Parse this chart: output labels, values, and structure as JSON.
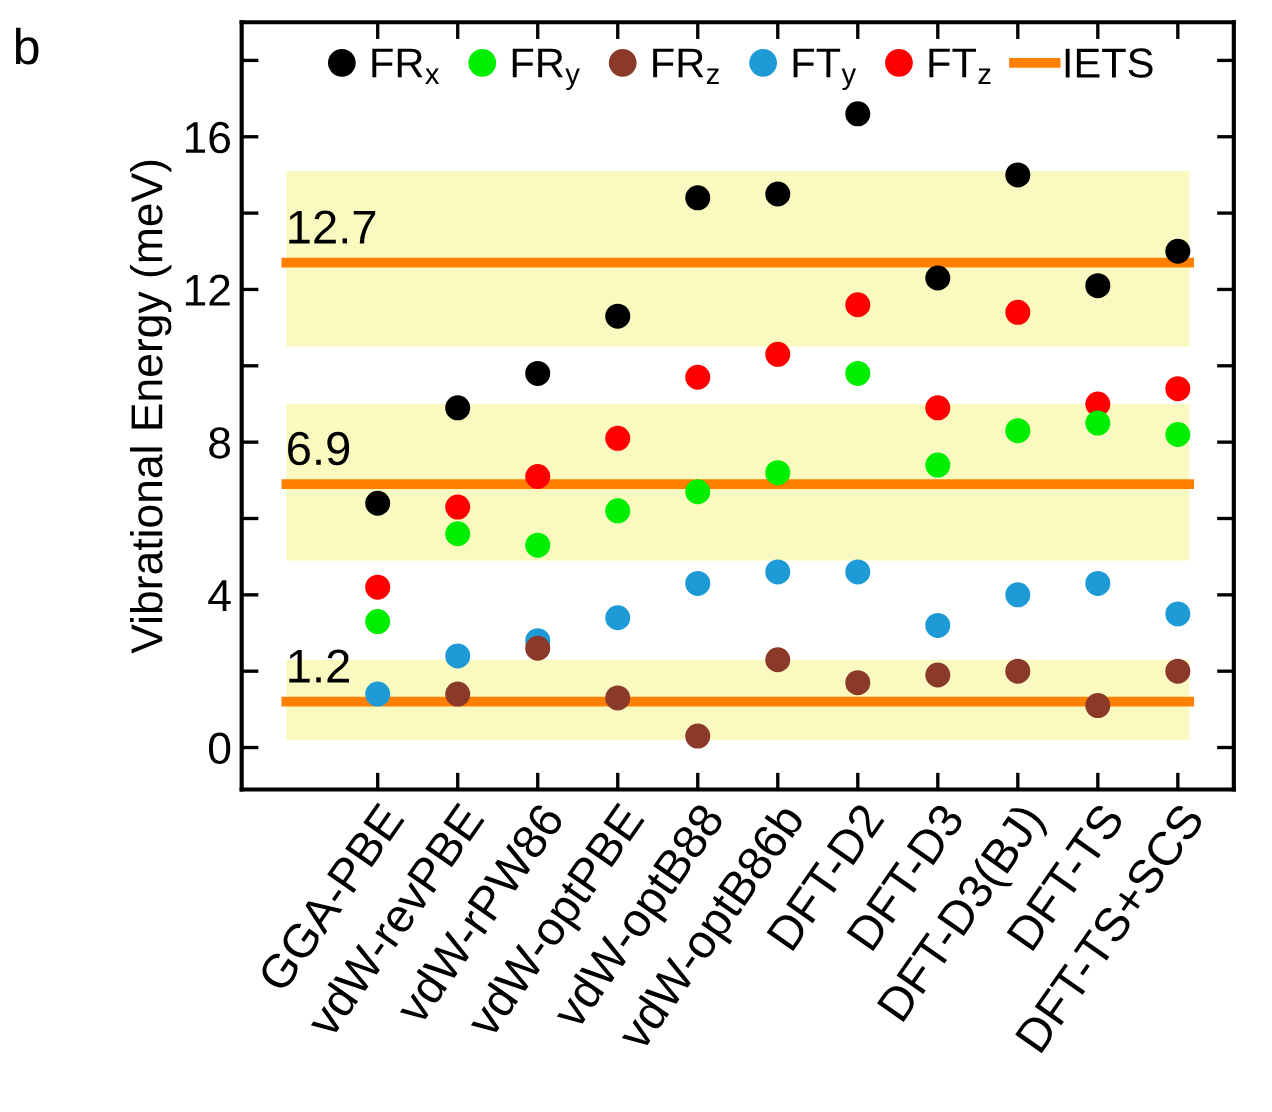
{
  "chart_data": {
    "type": "scatter",
    "ylabel": "Vibrational Energy (meV)",
    "categories": [
      "GGA-PBE",
      "vdW-revPBE",
      "vdW-rPW86",
      "vdW-optPBE",
      "vdW-optB88",
      "vdW-optB86b",
      "DFT-D2",
      "DFT-D3",
      "DFT-D3(BJ)",
      "DFT-TS",
      "DFT-TS+SCS"
    ],
    "series": [
      {
        "name": "FR$_{x}$",
        "color": "#000000",
        "values": [
          6.4,
          8.9,
          9.8,
          11.3,
          14.4,
          14.5,
          16.6,
          12.3,
          15.0,
          12.1,
          13.0
        ]
      },
      {
        "name": "FR$_{y}$",
        "color": "#00ee00",
        "values": [
          3.3,
          5.6,
          5.3,
          6.2,
          6.7,
          7.2,
          9.8,
          7.4,
          8.3,
          8.5,
          8.2
        ]
      },
      {
        "name": "FR$_{z}$",
        "color": "#8b3a2a",
        "values": [
          null,
          1.4,
          2.6,
          1.3,
          0.3,
          2.3,
          1.7,
          1.9,
          2.0,
          1.1,
          2.0
        ]
      },
      {
        "name": "FT$_{y}$",
        "color": "#1e9ad6",
        "values": [
          1.4,
          2.4,
          2.8,
          3.4,
          4.3,
          4.6,
          4.6,
          3.2,
          4.0,
          4.3,
          3.5
        ]
      },
      {
        "name": "FT$_{z}$",
        "color": "#ff0000",
        "values": [
          4.2,
          6.3,
          7.1,
          8.1,
          9.7,
          10.3,
          11.6,
          8.9,
          11.4,
          9.0,
          9.4
        ]
      }
    ],
    "ylim": [
      -1.1,
      19
    ],
    "yticks": [
      0,
      4,
      8,
      12,
      16
    ],
    "ref_lines": [
      {
        "axis": "y",
        "value": 12.7,
        "label": "12.7",
        "color": "#ff8000"
      },
      {
        "axis": "y",
        "value": 6.9,
        "label": "6.9",
        "color": "#ff8000"
      },
      {
        "axis": "y",
        "value": 1.2,
        "label": "1.2",
        "color": "#ff8000"
      }
    ],
    "bands": [
      {
        "axis": "y",
        "from": 10.5,
        "to": 15.1,
        "color": "#fafac0"
      },
      {
        "axis": "y",
        "from": 4.9,
        "to": 9.0,
        "color": "#fafac0"
      },
      {
        "axis": "y",
        "from": 0.2,
        "to": 2.3,
        "color": "#fafac0"
      }
    ],
    "annotations": [
      "b",
      "IETS"
    ],
    "marker": "circle",
    "grid": false,
    "legend": "top"
  }
}
